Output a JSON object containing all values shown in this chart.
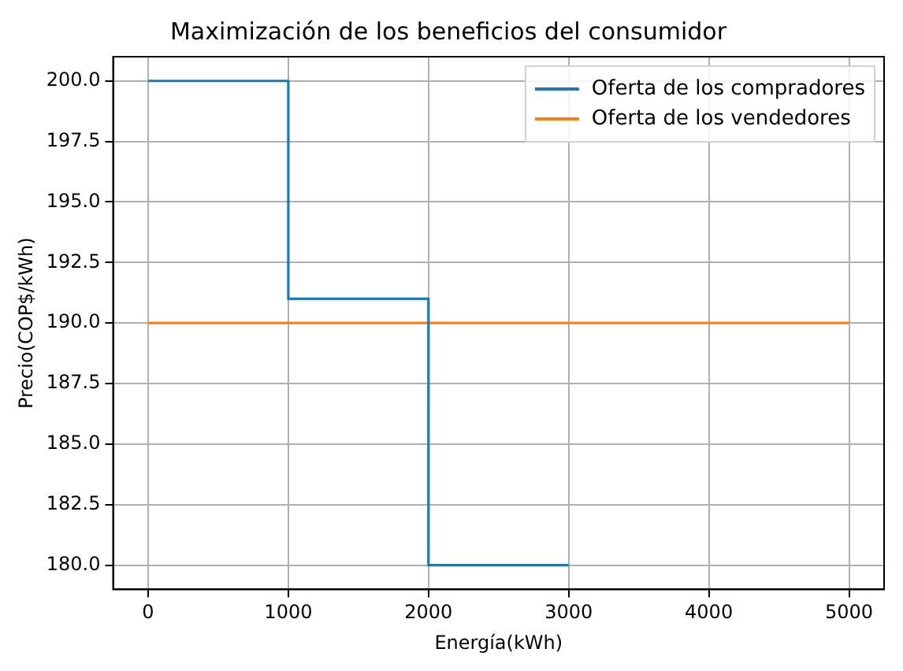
{
  "chart_data": {
    "type": "step",
    "title": "Maximización de los beneficios del consumidor",
    "xlabel": "Energía(kWh)",
    "ylabel": "Precio(COP$/kWh)",
    "series": [
      {
        "name": "Oferta de los compradores",
        "color": "#1f77b4",
        "x": [
          0,
          1000,
          2000,
          3000
        ],
        "values": [
          200,
          191,
          180,
          180
        ]
      },
      {
        "name": "Oferta de los vendedores",
        "type": "line",
        "color": "#ff7f0e",
        "x": [
          0,
          5000
        ],
        "values": [
          190,
          190
        ]
      }
    ],
    "xlim": [
      -250,
      5250
    ],
    "xticks": [
      0,
      1000,
      2000,
      3000,
      4000,
      5000
    ],
    "ylim": [
      179,
      201
    ],
    "yticks": [
      {
        "value": 180,
        "label": "180.0"
      },
      {
        "value": 182.5,
        "label": "182.5"
      },
      {
        "value": 185,
        "label": "185.0"
      },
      {
        "value": 187.5,
        "label": "187.5"
      },
      {
        "value": 190,
        "label": "190.0"
      },
      {
        "value": 192.5,
        "label": "192.5"
      },
      {
        "value": 195,
        "label": "195.0"
      },
      {
        "value": 197.5,
        "label": "197.5"
      },
      {
        "value": 200,
        "label": "200.0"
      }
    ],
    "grid": true,
    "legend": "top right"
  }
}
